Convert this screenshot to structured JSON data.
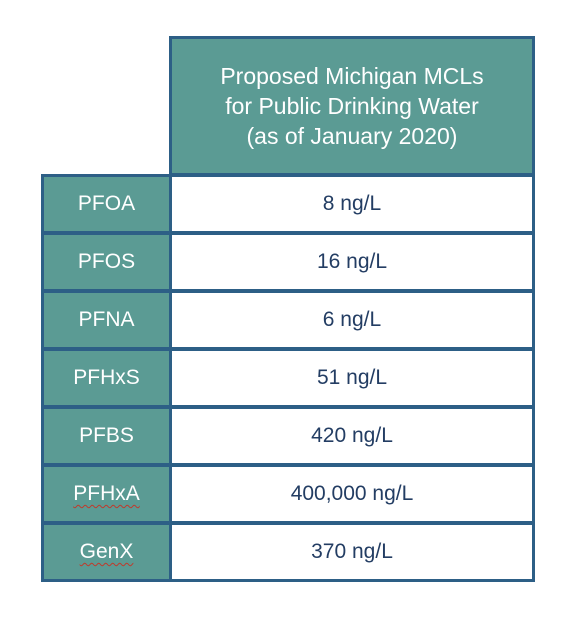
{
  "table": {
    "header": "Proposed Michigan MCLs\nfor Public Drinking Water\n(as of January 2020)",
    "rows": [
      {
        "compound": "PFOA",
        "mcl": "8 ng/L"
      },
      {
        "compound": "PFOS",
        "mcl": "16 ng/L"
      },
      {
        "compound": "PFNA",
        "mcl": "6 ng/L"
      },
      {
        "compound": "PFHxS",
        "mcl": "51 ng/L"
      },
      {
        "compound": "PFBS",
        "mcl": "420 ng/L"
      },
      {
        "compound": "PFHxA",
        "mcl": "400,000 ng/L"
      },
      {
        "compound": "GenX",
        "mcl": "370 ng/L"
      }
    ]
  },
  "colors": {
    "header_fill": "#5b9b94",
    "border": "#2d5f86",
    "value_text": "#233d63"
  }
}
